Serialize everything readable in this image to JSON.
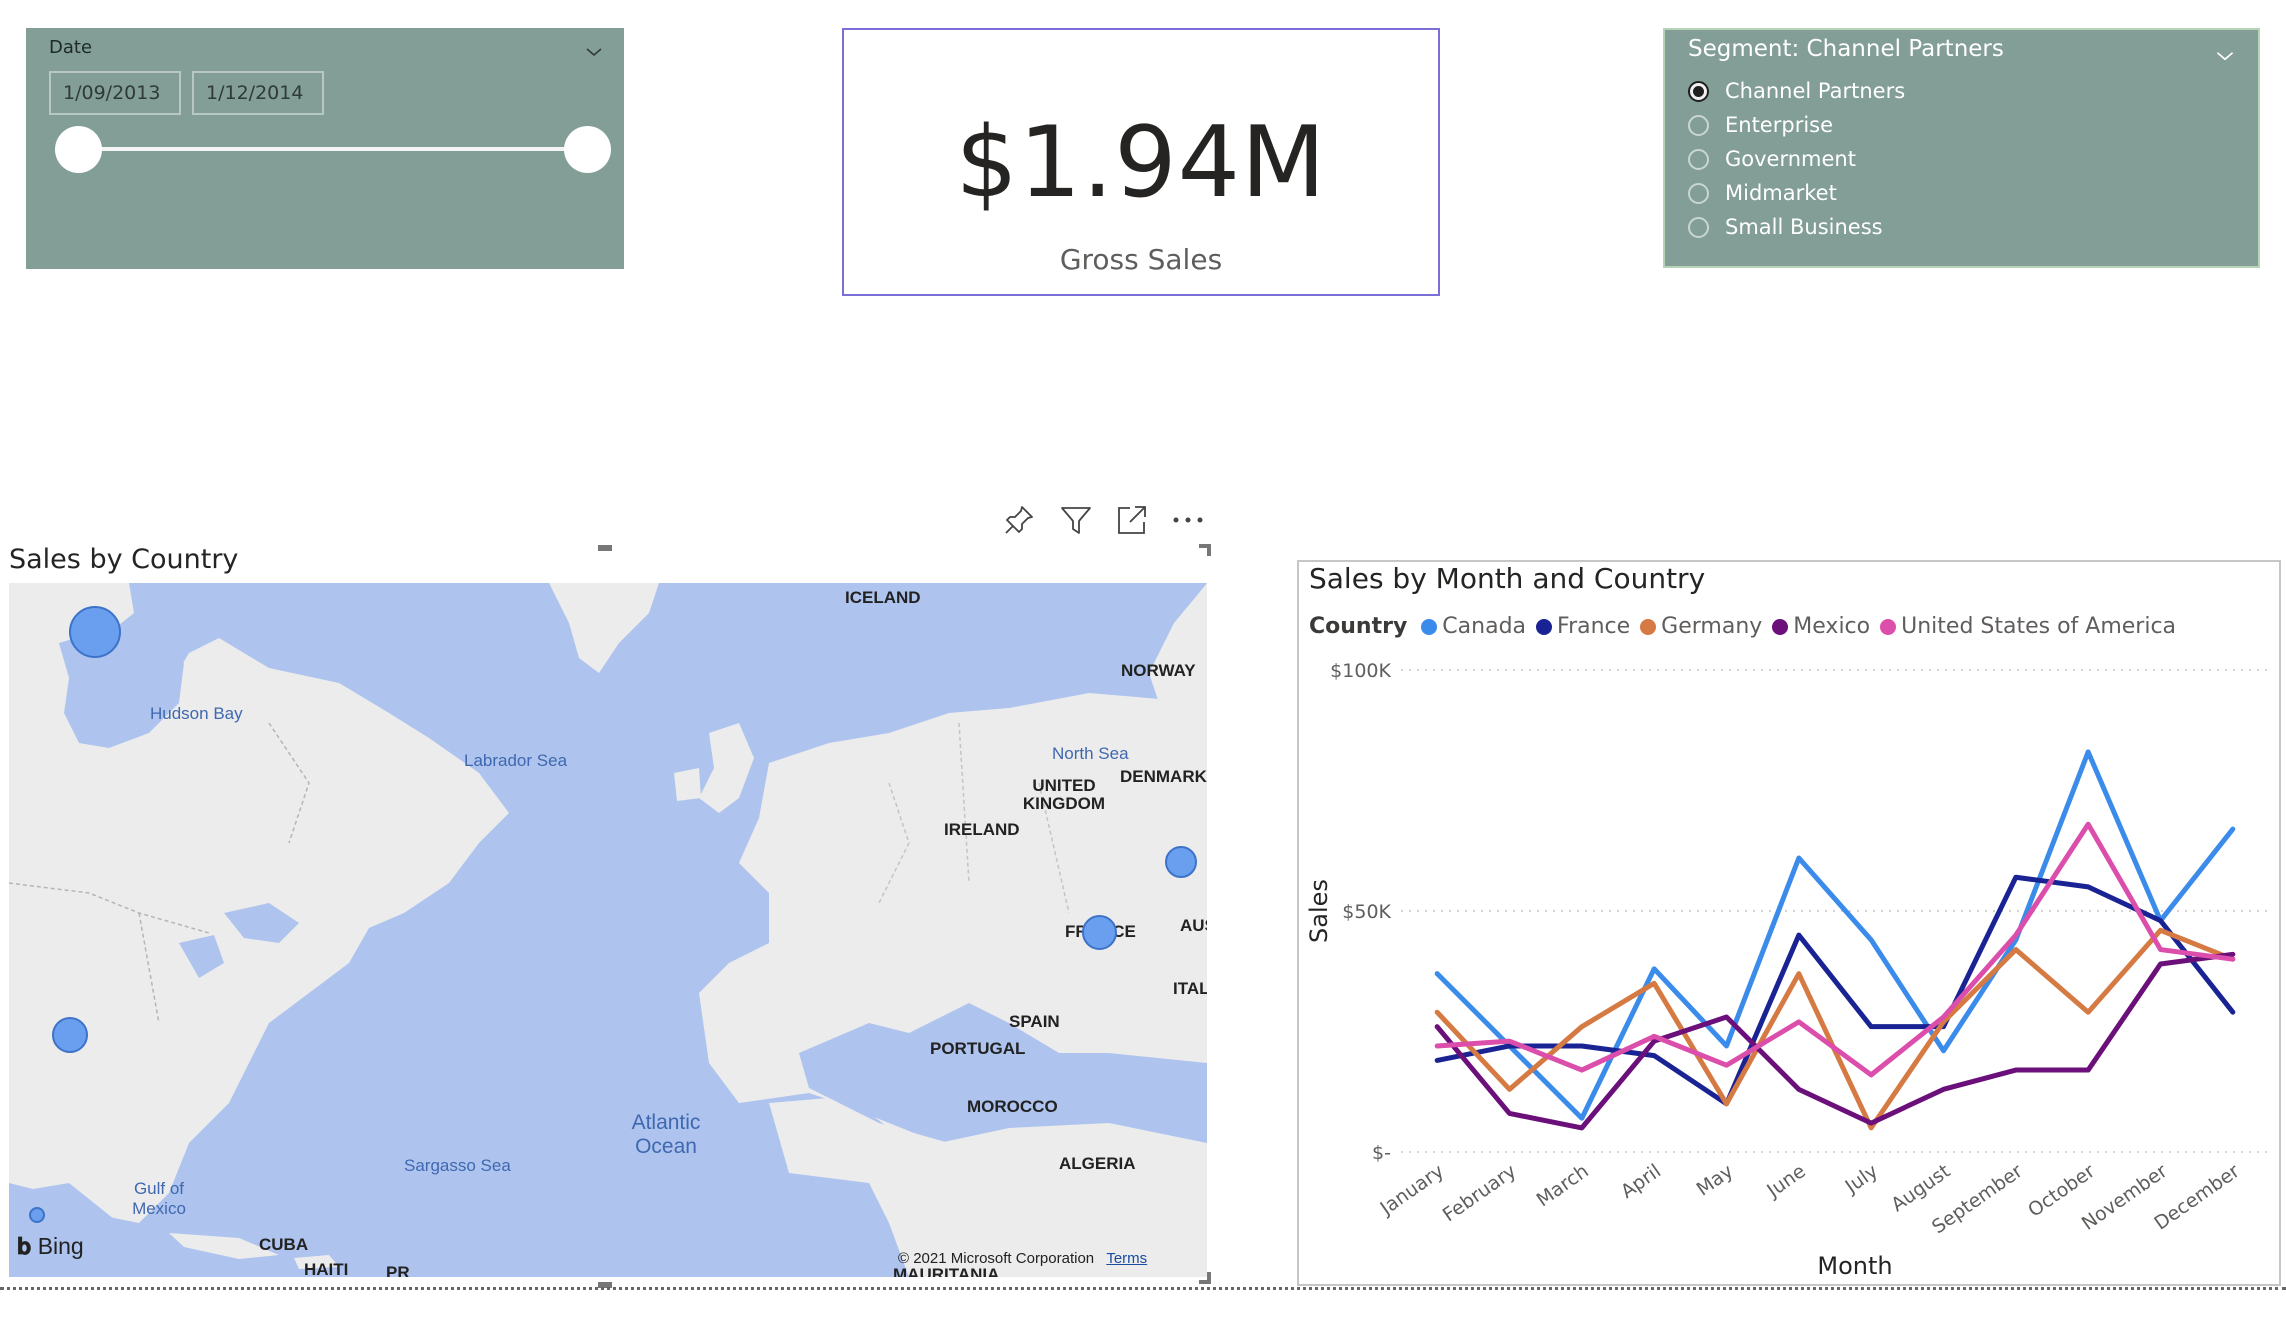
{
  "date_slicer": {
    "title": "Date",
    "start": "1/09/2013",
    "end": "1/12/2014",
    "range_fraction": [
      0.0,
      1.0
    ]
  },
  "kpi": {
    "value": "$1.94M",
    "label": "Gross Sales"
  },
  "segment_slicer": {
    "title": "Segment: Channel Partners",
    "options": [
      "Channel Partners",
      "Enterprise",
      "Government",
      "Midmarket",
      "Small Business"
    ],
    "selected": "Channel Partners"
  },
  "visual_header": {
    "icons": [
      "pin-icon",
      "filter-icon",
      "focus-mode-icon",
      "more-options-icon"
    ]
  },
  "map": {
    "title": "Sales by Country",
    "labels": {
      "iceland": "ICELAND",
      "norway": "NORWAY",
      "hudson_bay": "Hudson Bay",
      "labrador_sea": "Labrador Sea",
      "north_sea": "North Sea",
      "denmark": "DENMARK",
      "uk": "UNITED KINGDOM",
      "ireland": "IRELAND",
      "france": "FRANCE",
      "austria": "AUS",
      "italy": "ITAL",
      "spain": "SPAIN",
      "portugal": "PORTUGAL",
      "atlantic": "Atlantic Ocean",
      "morocco": "MOROCCO",
      "algeria": "ALGERIA",
      "sargasso": "Sargasso Sea",
      "gulf": "Gulf of Mexico",
      "cuba": "CUBA",
      "haiti": "HAITI",
      "pr": "PR",
      "mauritania": "MAURITANIA"
    },
    "bing": "Bing",
    "copyright": "© 2021 Microsoft Corporation",
    "terms": "Terms"
  },
  "line_chart": {
    "title": "Sales by Month and Country",
    "legend_title": "Country",
    "xlabel": "Month",
    "ylabel": "Sales",
    "y_ticks": [
      "$100K",
      "$50K",
      "$-"
    ]
  },
  "chart_data": {
    "type": "line",
    "title": "Sales by Month and Country",
    "xlabel": "Month",
    "ylabel": "Sales",
    "ylim": [
      0,
      100000
    ],
    "y_tick_values": [
      0,
      50000,
      100000
    ],
    "grid": true,
    "legend_position": "top",
    "categories": [
      "January",
      "February",
      "March",
      "April",
      "May",
      "June",
      "July",
      "August",
      "September",
      "October",
      "November",
      "December"
    ],
    "series": [
      {
        "name": "Canada",
        "color": "#3b8beb",
        "values": [
          37000,
          22000,
          7000,
          38000,
          22000,
          61000,
          44000,
          21000,
          44000,
          83000,
          48000,
          67000
        ]
      },
      {
        "name": "France",
        "color": "#1a2393",
        "values": [
          19000,
          22000,
          22000,
          20000,
          10000,
          45000,
          26000,
          26000,
          57000,
          55000,
          48000,
          29000
        ]
      },
      {
        "name": "Germany",
        "color": "#d57a43",
        "values": [
          29000,
          13000,
          26000,
          35000,
          10000,
          37000,
          5000,
          27000,
          42000,
          29000,
          46000,
          40000
        ]
      },
      {
        "name": "Mexico",
        "color": "#6b0f7a",
        "values": [
          26000,
          8000,
          5000,
          23000,
          28000,
          13000,
          6000,
          13000,
          17000,
          17000,
          39000,
          41000
        ]
      },
      {
        "name": "United States of America",
        "color": "#dc4eab",
        "values": [
          22000,
          23000,
          17000,
          24000,
          18000,
          27000,
          16000,
          28000,
          45000,
          68000,
          42000,
          40000
        ]
      }
    ]
  }
}
